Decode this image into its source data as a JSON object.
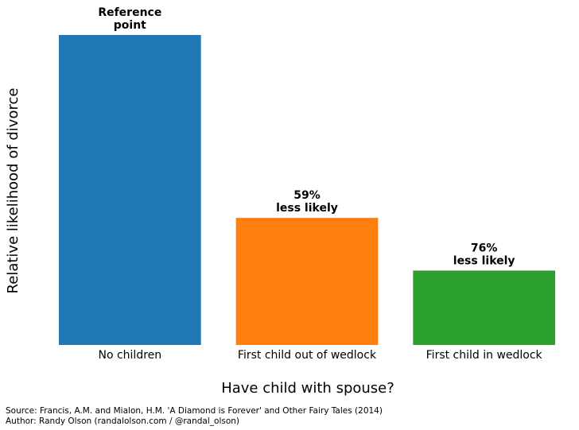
{
  "chart_data": {
    "type": "bar",
    "title": "",
    "xlabel": "Have child with spouse?",
    "ylabel": "Relative likelihood of divorce",
    "categories": [
      "No children",
      "First child out of wedlock",
      "First child in wedlock"
    ],
    "values": [
      1.0,
      0.41,
      0.24
    ],
    "ylim": [
      0,
      1.0
    ],
    "grid": false,
    "legend": "none",
    "colors": [
      "#1f77b4",
      "#ff7f0e",
      "#2ca02c"
    ],
    "bar_labels": [
      [
        "Reference",
        "point"
      ],
      [
        "59%",
        "less likely"
      ],
      [
        "76%",
        "less likely"
      ]
    ]
  },
  "source": {
    "line1": "Source: Francis, A.M. and Mialon, H.M. 'A Diamond is Forever' and Other Fairy Tales (2014)",
    "line2": "Author: Randy Olson (randalolson.com / @randal_olson)"
  }
}
